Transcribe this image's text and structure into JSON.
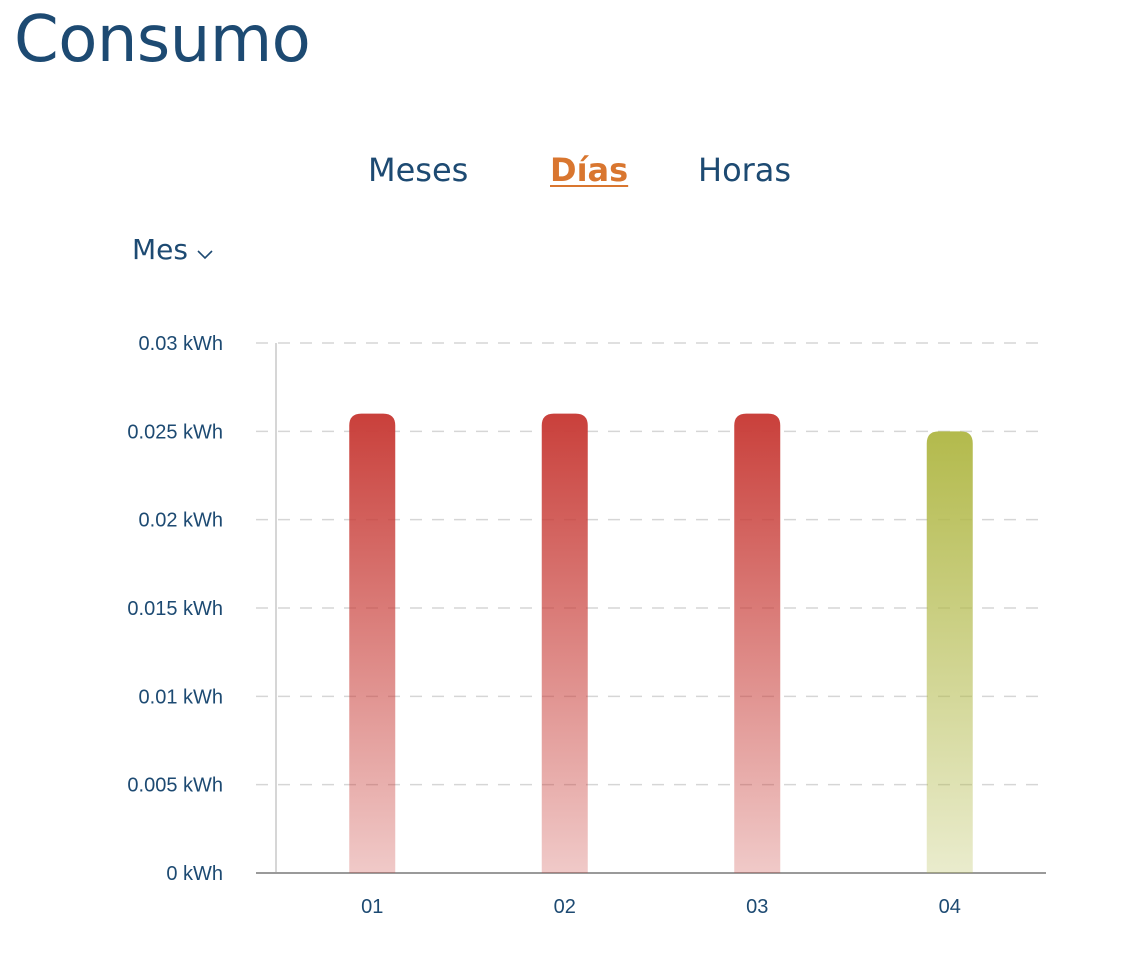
{
  "header": {
    "title": "Consumo"
  },
  "tabs": [
    {
      "label": "Meses",
      "active": false
    },
    {
      "label": "Días",
      "active": true
    },
    {
      "label": "Horas",
      "active": false
    }
  ],
  "period_select": {
    "label": "Mes",
    "icon": "chevron-down-icon"
  },
  "colors": {
    "title": "#1d4a72",
    "tab_active": "#d9762f",
    "bar_high": "#c9403b",
    "bar_normal": "#b3ba4c",
    "grid": "#d6d6d6"
  },
  "chart_data": {
    "type": "bar",
    "categories": [
      "01",
      "02",
      "03",
      "04"
    ],
    "values": [
      0.026,
      0.026,
      0.026,
      0.025
    ],
    "bar_colors": [
      "#c9403b",
      "#c9403b",
      "#c9403b",
      "#b3ba4c"
    ],
    "unit": "kWh",
    "ylim": [
      0,
      0.03
    ],
    "yticks": [
      0,
      0.005,
      0.01,
      0.015,
      0.02,
      0.025,
      0.03
    ],
    "ytick_labels": [
      "0 kWh",
      "0.005 kWh",
      "0.01 kWh",
      "0.015 kWh",
      "0.02 kWh",
      "0.025 kWh",
      "0.03 kWh"
    ],
    "grid": true,
    "title": "",
    "xlabel": "",
    "ylabel": ""
  }
}
